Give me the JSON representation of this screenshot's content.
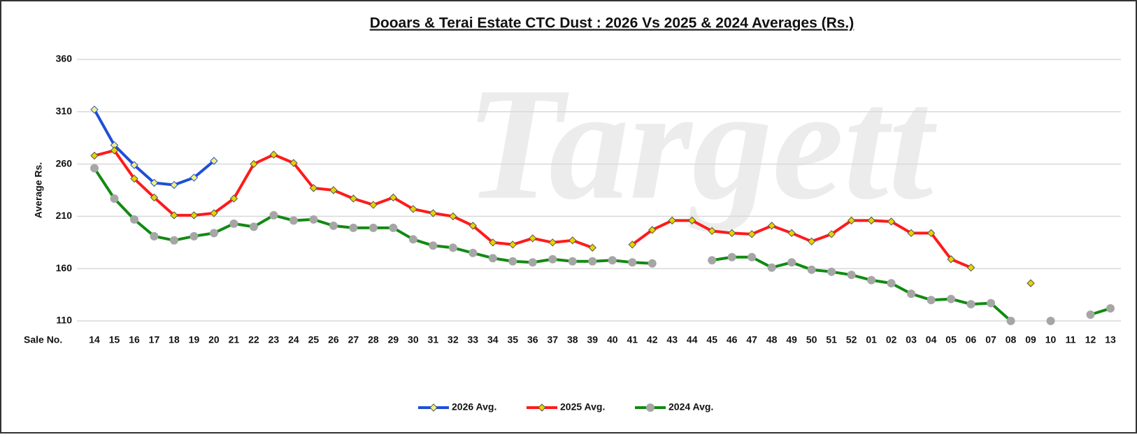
{
  "chart_data": {
    "type": "line",
    "title": "Dooars & Terai Estate CTC Dust : 2026 Vs 2025 & 2024 Averages (Rs.)",
    "watermark": "Targett",
    "x_label": "Sale No.",
    "y_label": "Average Rs.",
    "categories": [
      "14",
      "15",
      "16",
      "17",
      "18",
      "19",
      "20",
      "21",
      "22",
      "23",
      "24",
      "25",
      "26",
      "27",
      "28",
      "29",
      "30",
      "31",
      "32",
      "33",
      "34",
      "35",
      "36",
      "37",
      "38",
      "39",
      "40",
      "41",
      "42",
      "43",
      "44",
      "45",
      "46",
      "47",
      "48",
      "49",
      "50",
      "51",
      "52",
      "01",
      "02",
      "03",
      "04",
      "05",
      "06",
      "07",
      "08",
      "09",
      "10",
      "11",
      "12",
      "13"
    ],
    "ylim": [
      110,
      360
    ],
    "yticks": [
      110,
      160,
      210,
      260,
      310,
      360
    ],
    "grid": true,
    "legend": "bottom",
    "series": [
      {
        "name": "2026 Avg.",
        "color": "#1f4fd6",
        "marker": "diamond",
        "marker_color": "#f5f07a",
        "values": [
          312,
          278,
          259,
          242,
          240,
          247,
          263,
          null,
          null,
          null,
          null,
          null,
          null,
          null,
          null,
          null,
          null,
          null,
          null,
          null,
          null,
          null,
          null,
          null,
          null,
          null,
          null,
          null,
          null,
          null,
          null,
          null,
          null,
          null,
          null,
          null,
          null,
          null,
          null,
          null,
          null,
          null,
          null,
          null,
          null,
          null,
          null,
          null,
          null,
          null,
          null,
          null
        ]
      },
      {
        "name": "2025 Avg.",
        "color": "#ff1a1a",
        "marker": "diamond",
        "marker_color": "#e8d200",
        "values": [
          268,
          273,
          246,
          228,
          211,
          211,
          213,
          227,
          260,
          269,
          261,
          237,
          235,
          227,
          221,
          228,
          217,
          213,
          210,
          201,
          185,
          183,
          189,
          185,
          187,
          180,
          null,
          183,
          197,
          206,
          206,
          196,
          194,
          193,
          201,
          194,
          186,
          193,
          206,
          206,
          205,
          194,
          194,
          169,
          161,
          null,
          null,
          146,
          null,
          null,
          null,
          null
        ]
      },
      {
        "name": "2024 Avg.",
        "color": "#128a12",
        "marker": "circle",
        "marker_color": "#a6a6a6",
        "values": [
          256,
          227,
          207,
          191,
          187,
          191,
          194,
          203,
          200,
          211,
          206,
          207,
          201,
          199,
          199,
          199,
          188,
          182,
          180,
          175,
          170,
          167,
          166,
          169,
          167,
          167,
          168,
          166,
          165,
          null,
          null,
          168,
          171,
          171,
          161,
          166,
          159,
          157,
          154,
          149,
          146,
          136,
          130,
          131,
          126,
          127,
          110,
          null,
          110,
          null,
          116,
          122
        ]
      }
    ]
  }
}
